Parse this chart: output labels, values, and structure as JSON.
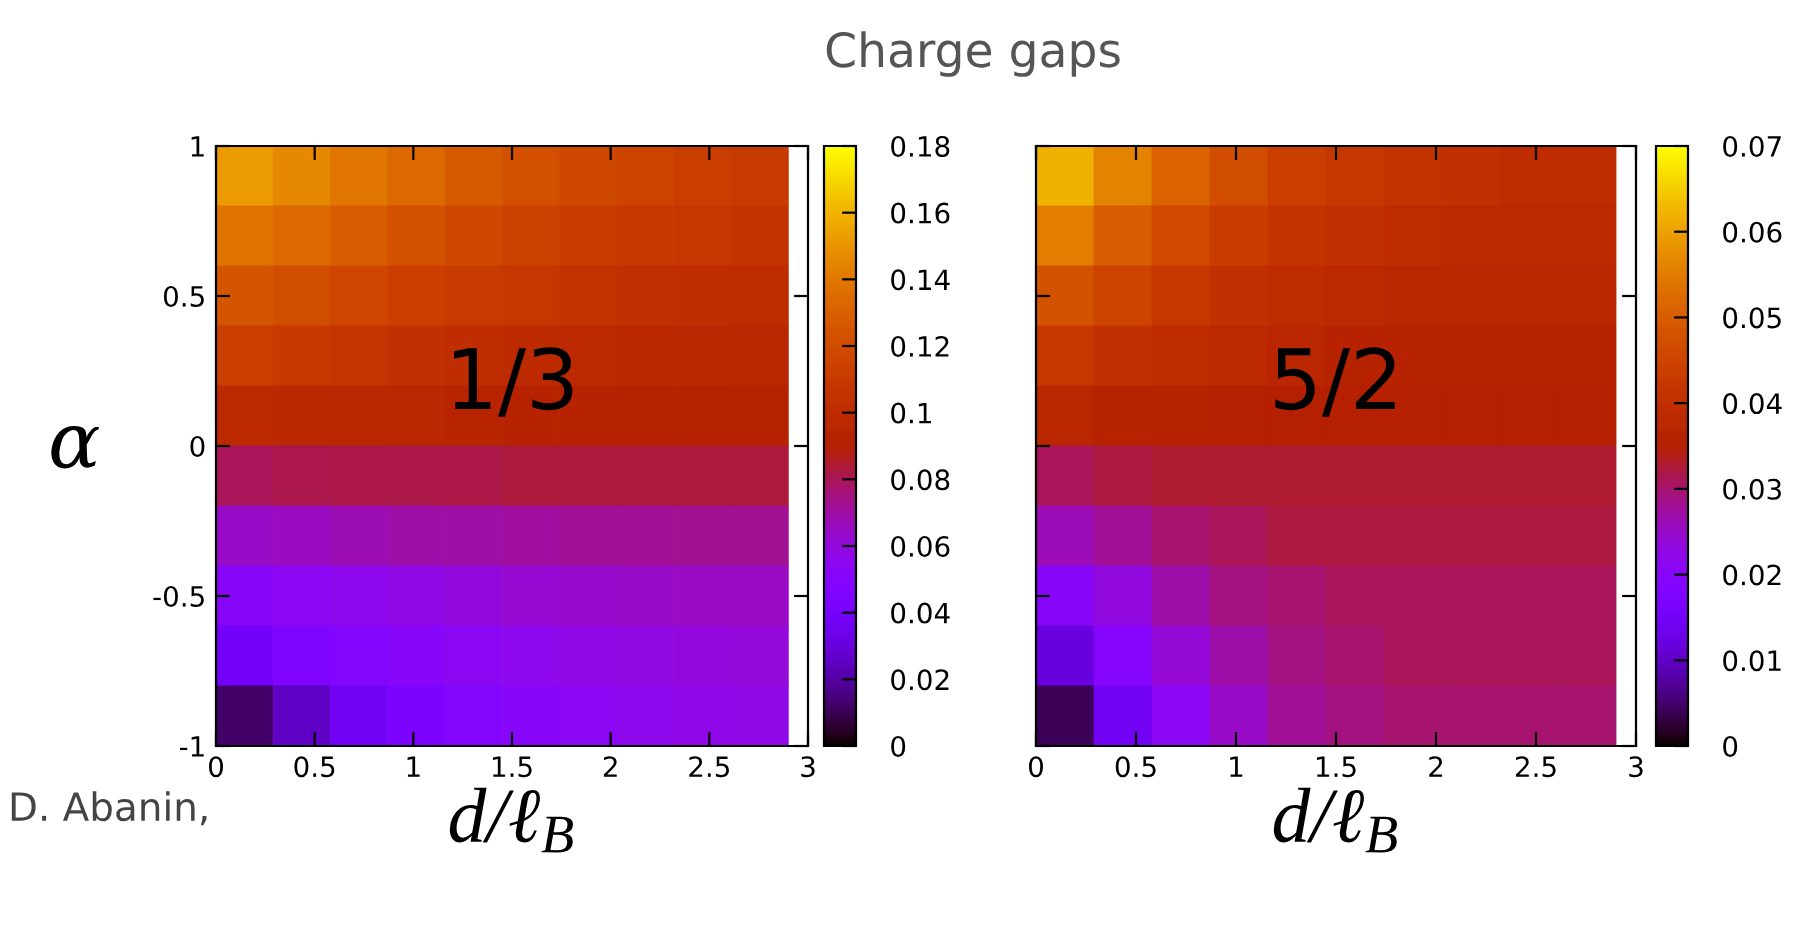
{
  "chart_data": [
    {
      "type": "heatmap",
      "title": "Charge gaps",
      "ylabel": "α",
      "xlabel": "d/ℓ$_{B}$",
      "annotations": [
        "1/3",
        "D. Abanin,"
      ],
      "x": [
        0.145,
        0.435,
        0.725,
        1.015,
        1.305,
        1.595,
        1.885,
        2.175,
        2.465,
        2.755
      ],
      "xlim": [
        0,
        3
      ],
      "xticks": [
        0,
        0.5,
        1,
        1.5,
        2,
        2.5,
        3
      ],
      "ylim": [
        -1,
        1
      ],
      "yticks": [
        -1,
        -0.5,
        0,
        0.5,
        1
      ],
      "clim": [
        0,
        0.18
      ],
      "cticks": [
        0,
        0.02,
        0.04,
        0.06,
        0.08,
        0.1,
        0.12,
        0.14,
        0.16,
        0.18
      ],
      "cells": [
        [
          0.152,
          0.146,
          0.139,
          0.133,
          0.127,
          0.122,
          0.118,
          0.115,
          0.112,
          0.11
        ],
        [
          0.138,
          0.133,
          0.128,
          0.123,
          0.118,
          0.114,
          0.111,
          0.109,
          0.107,
          0.105
        ],
        [
          0.125,
          0.121,
          0.117,
          0.113,
          0.11,
          0.107,
          0.104,
          0.102,
          0.101,
          0.1
        ],
        [
          0.112,
          0.109,
          0.106,
          0.103,
          0.101,
          0.099,
          0.098,
          0.097,
          0.096,
          0.095
        ],
        [
          0.098,
          0.097,
          0.096,
          0.095,
          0.094,
          0.093,
          0.093,
          0.092,
          0.092,
          0.092
        ],
        [
          0.08,
          0.081,
          0.082,
          0.082,
          0.082,
          0.083,
          0.083,
          0.083,
          0.083,
          0.083
        ],
        [
          0.064,
          0.066,
          0.068,
          0.069,
          0.07,
          0.071,
          0.072,
          0.072,
          0.073,
          0.073
        ],
        [
          0.052,
          0.054,
          0.056,
          0.058,
          0.06,
          0.062,
          0.063,
          0.064,
          0.065,
          0.065
        ],
        [
          0.038,
          0.044,
          0.048,
          0.051,
          0.054,
          0.056,
          0.058,
          0.059,
          0.06,
          0.061
        ],
        [
          0.012,
          0.026,
          0.036,
          0.043,
          0.048,
          0.052,
          0.054,
          0.056,
          0.057,
          0.058
        ]
      ]
    },
    {
      "type": "heatmap",
      "xlabel": "d/ℓ$_{B}$",
      "annotations": [
        "5/2"
      ],
      "tick_labels": "x",
      "x": [
        0.145,
        0.435,
        0.725,
        1.015,
        1.305,
        1.595,
        1.885,
        2.175,
        2.465,
        2.755
      ],
      "xlim": [
        0,
        3
      ],
      "xticks": [
        0,
        0.5,
        1,
        1.5,
        2,
        2.5,
        3
      ],
      "ylim": [
        -1,
        1
      ],
      "yticks": [
        -1,
        -0.5,
        0,
        0.5,
        1
      ],
      "clim": [
        0,
        0.07
      ],
      "cticks": [
        0,
        0.01,
        0.02,
        0.03,
        0.04,
        0.05,
        0.06,
        0.07
      ],
      "cells": [
        [
          0.062,
          0.056,
          0.051,
          0.047,
          0.044,
          0.042,
          0.041,
          0.04,
          0.039,
          0.039
        ],
        [
          0.055,
          0.05,
          0.046,
          0.043,
          0.041,
          0.04,
          0.039,
          0.038,
          0.038,
          0.038
        ],
        [
          0.048,
          0.045,
          0.042,
          0.04,
          0.039,
          0.038,
          0.037,
          0.037,
          0.037,
          0.037
        ],
        [
          0.042,
          0.04,
          0.039,
          0.038,
          0.037,
          0.036,
          0.036,
          0.036,
          0.036,
          0.036
        ],
        [
          0.037,
          0.036,
          0.036,
          0.035,
          0.035,
          0.035,
          0.035,
          0.035,
          0.035,
          0.035
        ],
        [
          0.031,
          0.032,
          0.033,
          0.033,
          0.033,
          0.033,
          0.033,
          0.033,
          0.033,
          0.033
        ],
        [
          0.026,
          0.028,
          0.03,
          0.031,
          0.032,
          0.032,
          0.032,
          0.032,
          0.032,
          0.032
        ],
        [
          0.02,
          0.023,
          0.027,
          0.029,
          0.03,
          0.031,
          0.031,
          0.031,
          0.031,
          0.031
        ],
        [
          0.012,
          0.019,
          0.024,
          0.027,
          0.029,
          0.03,
          0.031,
          0.031,
          0.031,
          0.031
        ],
        [
          0.004,
          0.014,
          0.021,
          0.025,
          0.028,
          0.029,
          0.03,
          0.03,
          0.03,
          0.03
        ]
      ]
    }
  ]
}
